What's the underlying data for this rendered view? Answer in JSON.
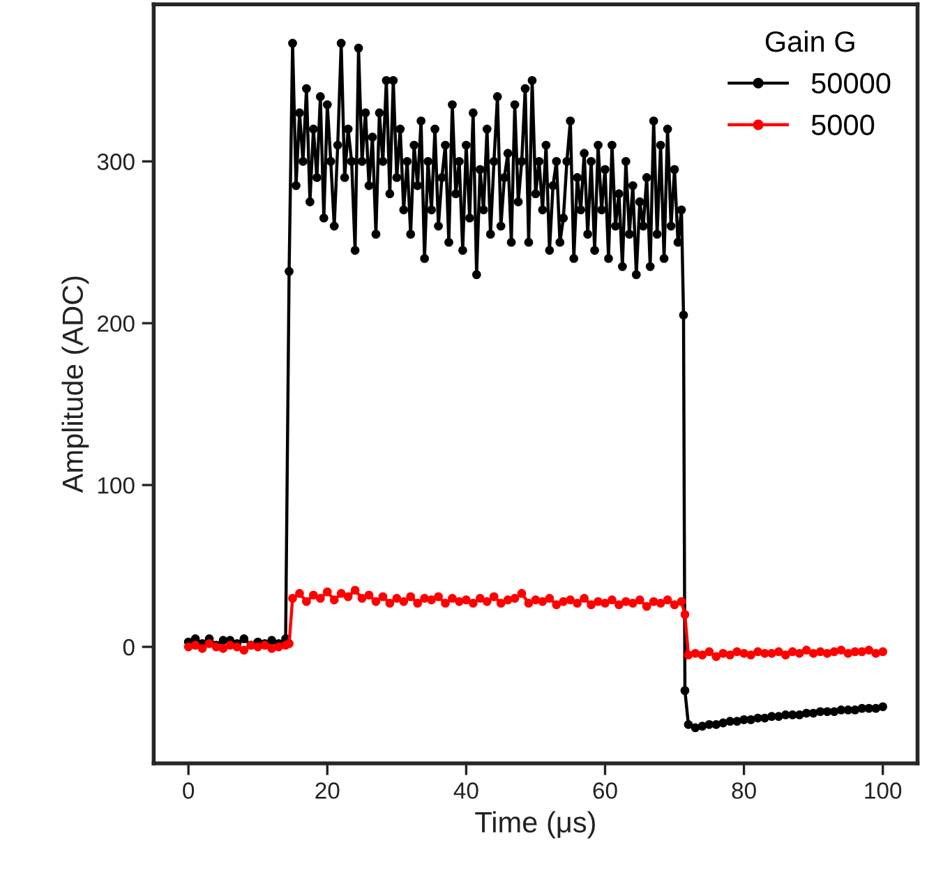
{
  "chart_data": {
    "type": "line",
    "xlabel": "Time (μs)",
    "ylabel": "Amplitude (ADC)",
    "legend_title": "Gain G",
    "xlim": [
      -5,
      105
    ],
    "ylim": [
      -72,
      397
    ],
    "xticks": [
      0,
      20,
      40,
      60,
      80,
      100
    ],
    "yticks": [
      0,
      100,
      200,
      300
    ],
    "grid": false,
    "legend": "top right",
    "marker": "circle",
    "line_style": "solid",
    "series": [
      {
        "name": "50000",
        "color": "#000000",
        "x": [
          0,
          1,
          2,
          3,
          4,
          5,
          6,
          7,
          8,
          9,
          10,
          11,
          12,
          13,
          14,
          14.5,
          15,
          15.5,
          16,
          16.5,
          17,
          17.5,
          18,
          18.5,
          19,
          19.5,
          20,
          20.5,
          21,
          21.5,
          22,
          22.5,
          23,
          23.5,
          24,
          24.5,
          25,
          25.5,
          26,
          26.5,
          27,
          27.5,
          28,
          28.5,
          29,
          29.5,
          30,
          30.5,
          31,
          31.5,
          32,
          32.5,
          33,
          33.5,
          34,
          34.5,
          35,
          35.5,
          36,
          36.5,
          37,
          37.5,
          38,
          38.5,
          39,
          39.5,
          40,
          40.5,
          41,
          41.5,
          42,
          42.5,
          43,
          43.5,
          44,
          44.5,
          45,
          45.5,
          46,
          46.5,
          47,
          47.5,
          48,
          48.5,
          49,
          49.5,
          50,
          50.5,
          51,
          51.5,
          52,
          52.5,
          53,
          53.5,
          54,
          54.5,
          55,
          55.5,
          56,
          56.5,
          57,
          57.5,
          58,
          58.5,
          59,
          59.5,
          60,
          60.5,
          61,
          61.5,
          62,
          62.5,
          63,
          63.5,
          64,
          64.5,
          65,
          65.5,
          66,
          66.5,
          67,
          67.5,
          68,
          68.5,
          69,
          69.5,
          70,
          70.5,
          71,
          71.3,
          71.5,
          72,
          73,
          74,
          75,
          76,
          77,
          78,
          79,
          80,
          81,
          82,
          83,
          84,
          85,
          86,
          87,
          88,
          89,
          90,
          91,
          92,
          93,
          94,
          95,
          96,
          97,
          98,
          99,
          100
        ],
        "values": [
          3,
          5,
          2,
          5,
          1,
          4,
          4,
          2,
          5,
          1,
          3,
          2,
          4,
          2,
          5,
          232,
          373,
          285,
          330,
          300,
          345,
          275,
          320,
          290,
          340,
          265,
          335,
          300,
          260,
          310,
          373,
          290,
          320,
          300,
          245,
          370,
          300,
          330,
          285,
          315,
          255,
          330,
          300,
          350,
          280,
          350,
          290,
          320,
          270,
          300,
          255,
          310,
          285,
          325,
          240,
          300,
          270,
          320,
          260,
          290,
          310,
          250,
          335,
          280,
          300,
          245,
          310,
          265,
          330,
          230,
          295,
          270,
          320,
          255,
          300,
          340,
          260,
          290,
          305,
          250,
          335,
          275,
          300,
          345,
          250,
          350,
          280,
          300,
          270,
          310,
          245,
          285,
          300,
          250,
          265,
          300,
          325,
          240,
          290,
          270,
          305,
          255,
          300,
          245,
          310,
          270,
          295,
          240,
          310,
          260,
          280,
          235,
          300,
          255,
          285,
          230,
          275,
          260,
          290,
          235,
          325,
          255,
          310,
          240,
          320,
          260,
          295,
          250,
          270,
          205,
          -27,
          -48,
          -50,
          -49,
          -48,
          -48,
          -47,
          -46,
          -46,
          -45,
          -45,
          -44,
          -44,
          -43,
          -43,
          -42,
          -42,
          -42,
          -41,
          -41,
          -40,
          -40,
          -40,
          -39,
          -39,
          -39,
          -38,
          -38,
          -38,
          -37
        ]
      },
      {
        "name": "5000",
        "color": "#ff0000",
        "x": [
          0,
          1,
          2,
          3,
          4,
          5,
          6,
          7,
          8,
          9,
          10,
          11,
          12,
          13,
          14,
          14.5,
          15,
          16,
          17,
          18,
          19,
          20,
          21,
          22,
          23,
          24,
          25,
          26,
          27,
          28,
          29,
          30,
          31,
          32,
          33,
          34,
          35,
          36,
          37,
          38,
          39,
          40,
          41,
          42,
          43,
          44,
          45,
          46,
          47,
          48,
          49,
          50,
          51,
          52,
          53,
          54,
          55,
          56,
          57,
          58,
          59,
          60,
          61,
          62,
          63,
          64,
          65,
          66,
          67,
          68,
          69,
          70,
          71,
          71.5,
          72,
          73,
          74,
          75,
          76,
          77,
          78,
          79,
          80,
          81,
          82,
          83,
          84,
          85,
          86,
          87,
          88,
          89,
          90,
          91,
          92,
          93,
          94,
          95,
          96,
          97,
          98,
          99,
          100
        ],
        "values": [
          0,
          1,
          -1,
          2,
          0,
          -1,
          1,
          0,
          -2,
          1,
          0,
          1,
          -1,
          0,
          1,
          2,
          30,
          33,
          28,
          32,
          30,
          34,
          29,
          33,
          31,
          35,
          30,
          32,
          28,
          31,
          27,
          30,
          28,
          31,
          27,
          30,
          29,
          31,
          27,
          30,
          28,
          29,
          27,
          30,
          28,
          31,
          27,
          29,
          30,
          33,
          27,
          29,
          28,
          30,
          26,
          28,
          29,
          27,
          30,
          26,
          28,
          27,
          29,
          26,
          28,
          27,
          29,
          25,
          28,
          27,
          29,
          26,
          28,
          20,
          -5,
          -4,
          -5,
          -3,
          -6,
          -4,
          -5,
          -3,
          -4,
          -5,
          -3,
          -4,
          -4,
          -3,
          -5,
          -3,
          -4,
          -2,
          -4,
          -3,
          -4,
          -3,
          -2,
          -4,
          -3,
          -3,
          -2,
          -4,
          -3
        ]
      }
    ]
  }
}
